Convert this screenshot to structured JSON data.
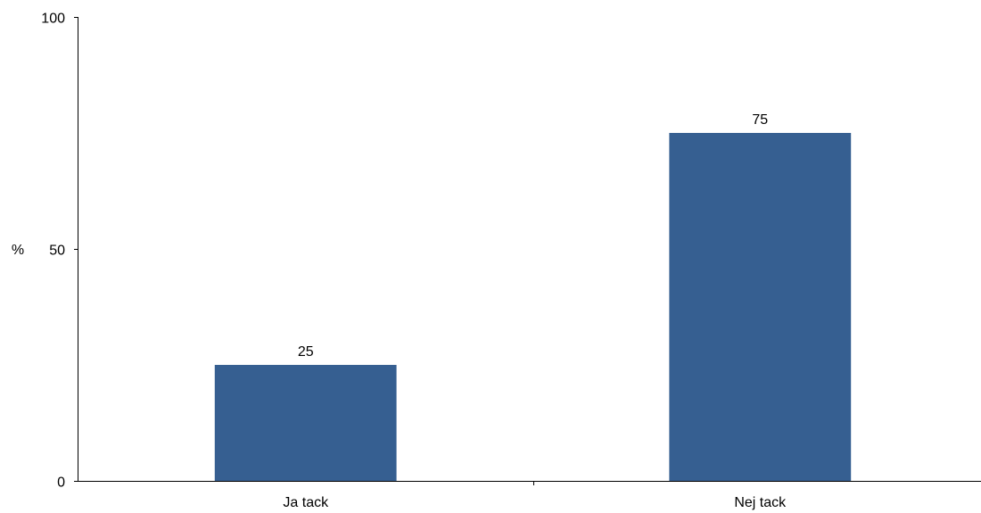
{
  "chart_data": {
    "type": "bar",
    "categories": [
      "Ja tack",
      "Nej tack"
    ],
    "values": [
      25,
      75
    ],
    "data_labels": [
      "25",
      "75"
    ],
    "title": "",
    "xlabel": "",
    "ylabel": "%",
    "ylim": [
      0,
      100
    ],
    "yticks": [
      0,
      50,
      100
    ],
    "ytick_labels": [
      "0",
      "50",
      "100"
    ],
    "grid": false,
    "legend": "none",
    "bar_color": "#365F91"
  }
}
